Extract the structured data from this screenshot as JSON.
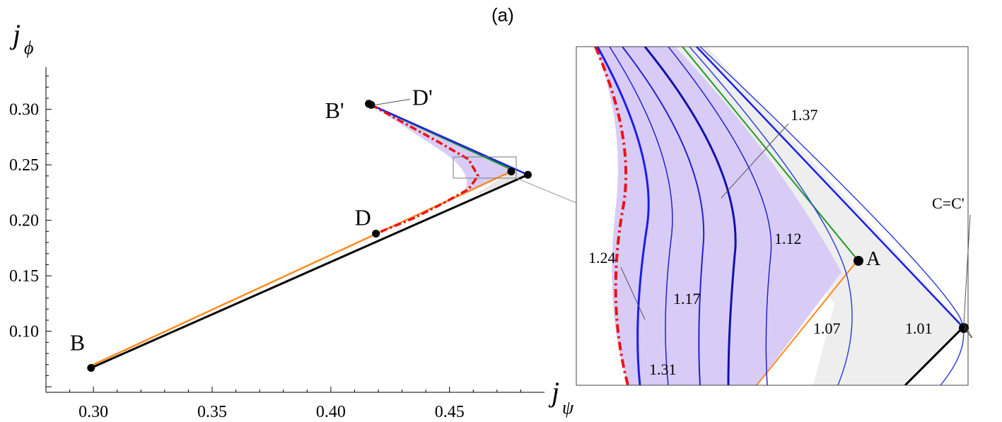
{
  "chart_data": [
    {
      "type": "line",
      "panel_label": "(a)",
      "xlabel": {
        "main": "j",
        "sub": "ψ"
      },
      "ylabel": {
        "main": "j",
        "sub": "ϕ"
      },
      "xlim": [
        0.28,
        0.49
      ],
      "ylim": [
        0.045,
        0.338
      ],
      "xticks": [
        0.3,
        0.35,
        0.4,
        0.45
      ],
      "xtick_labels": [
        "0.30",
        "0.35",
        "0.40",
        "0.45"
      ],
      "yticks": [
        0.1,
        0.15,
        0.2,
        0.25,
        0.3
      ],
      "ytick_labels": [
        "0.10",
        "0.15",
        "0.20",
        "0.25",
        "0.30"
      ],
      "grid": false,
      "colors": {
        "black": "#000000",
        "orange": "#ff8a1c",
        "green": "#1f9a24",
        "blue": "#1a1ee8",
        "red": "#ee1111",
        "fill": "#d8ccf7"
      },
      "points": [
        {
          "label": "B",
          "x": 0.299,
          "y": 0.067
        },
        {
          "label": "D",
          "x": 0.419,
          "y": 0.188
        },
        {
          "label": "B'",
          "x": 0.416,
          "y": 0.305
        },
        {
          "label": "D'",
          "x": 0.417,
          "y": 0.304
        },
        {
          "label": "",
          "x": 0.476,
          "y": 0.244
        },
        {
          "label": "",
          "x": 0.483,
          "y": 0.241
        }
      ],
      "series": [
        {
          "color": "black",
          "x": [
            0.299,
            0.483
          ],
          "y": [
            0.067,
            0.241
          ]
        },
        {
          "color": "orange",
          "x": [
            0.299,
            0.476
          ],
          "y": [
            0.069,
            0.244
          ]
        },
        {
          "color": "green",
          "x": [
            0.417,
            0.476
          ],
          "y": [
            0.304,
            0.246
          ]
        },
        {
          "color": "blue",
          "x": [
            0.417,
            0.483
          ],
          "y": [
            0.304,
            0.241
          ]
        },
        {
          "color": "red",
          "style": "dashdot",
          "x": [
            0.417,
            0.445,
            0.458,
            0.462,
            0.458,
            0.447,
            0.435,
            0.419
          ],
          "y": [
            0.304,
            0.271,
            0.255,
            0.24,
            0.228,
            0.215,
            0.202,
            0.188
          ]
        }
      ]
    },
    {
      "type": "line",
      "title": "inset",
      "point_labels": [
        {
          "label": "A"
        },
        {
          "label": "C=C'"
        }
      ],
      "contour_labels": [
        "1.37",
        "1.24",
        "1.12",
        "1.17",
        "1.07",
        "1.01",
        "1.31"
      ]
    }
  ]
}
